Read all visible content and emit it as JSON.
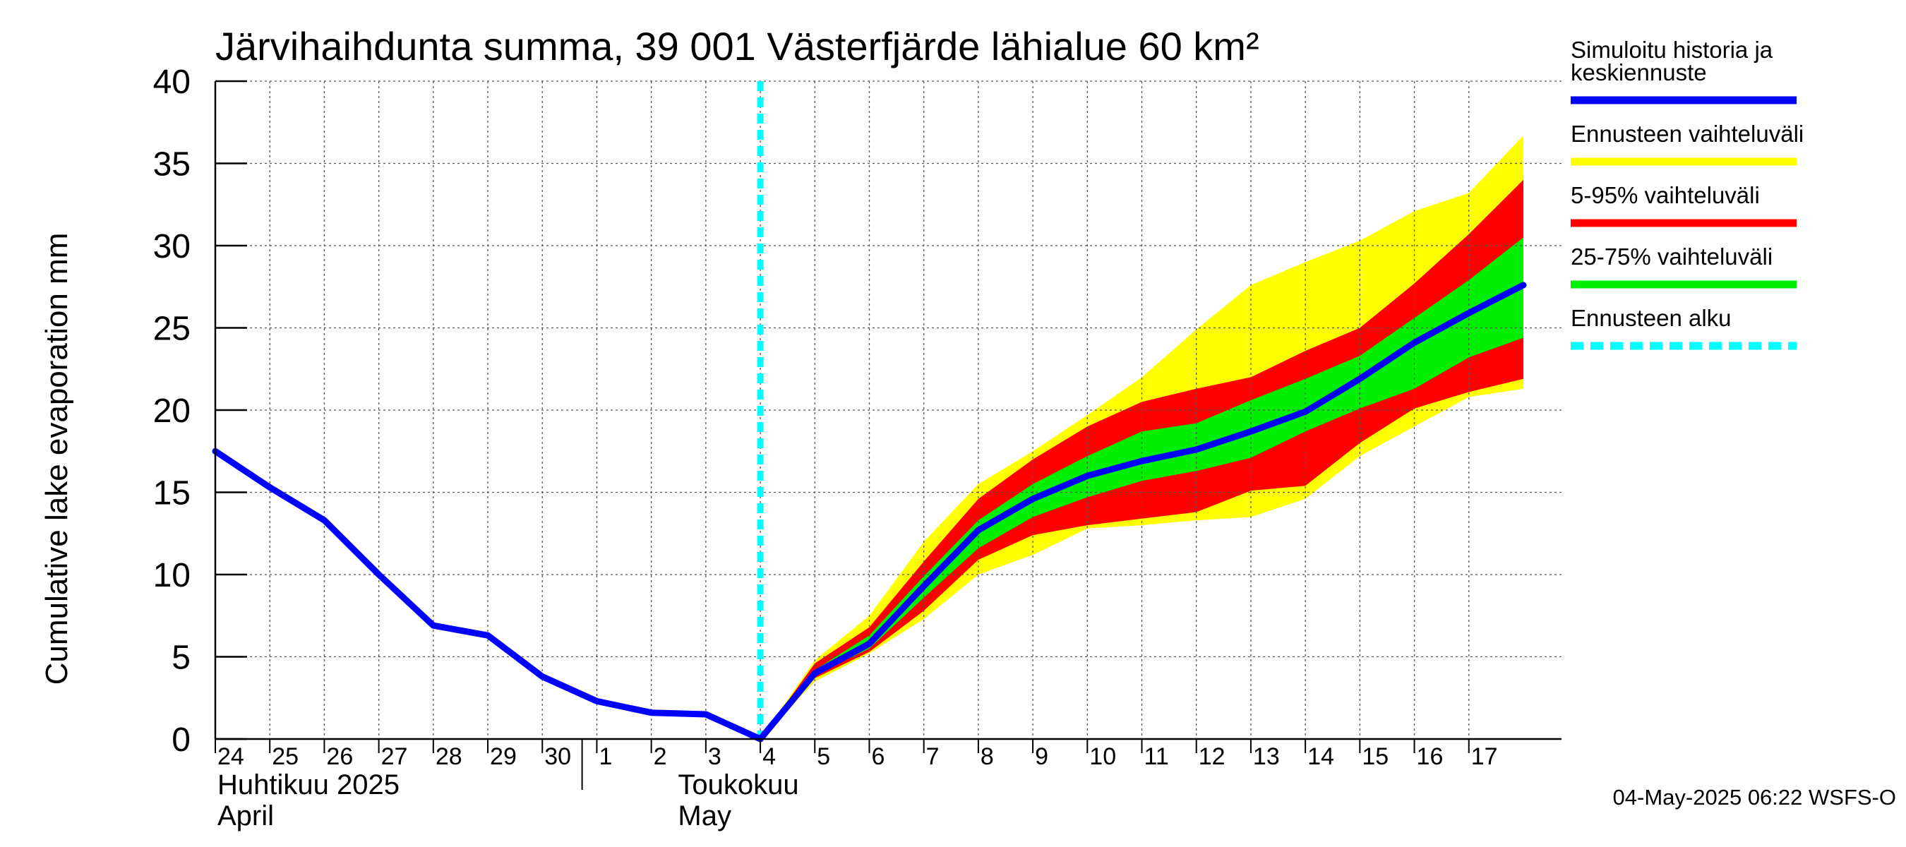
{
  "chart_data": {
    "type": "area",
    "title": "Järvihaihdunta summa, 39 001 Västerfjärde lähialue 60 km²",
    "ylabel": "Cumulative lake evaporation   mm",
    "ylim": [
      0,
      40
    ],
    "yticks": [
      0,
      5,
      10,
      15,
      20,
      25,
      30,
      35,
      40
    ],
    "grid": true,
    "day_labels": [
      "24",
      "25",
      "26",
      "27",
      "28",
      "29",
      "30",
      "1",
      "2",
      "3",
      "4",
      "5",
      "6",
      "7",
      "8",
      "9",
      "10",
      "11",
      "12",
      "13",
      "14",
      "15",
      "16",
      "17"
    ],
    "month_labels": [
      {
        "line1": "Huhtikuu  2025",
        "line2": "April"
      },
      {
        "line1": "Toukokuu",
        "line2": "May"
      }
    ],
    "forecast_start_day": 10,
    "history": {
      "name": "Simuloitu historia ja keskiennuste",
      "x": [
        0,
        1,
        2,
        3,
        4,
        5,
        6,
        7,
        8,
        9,
        10
      ],
      "y": [
        17.5,
        15.3,
        13.3,
        10.0,
        6.9,
        6.3,
        3.8,
        2.3,
        1.6,
        1.5,
        0.0
      ]
    },
    "forecast": {
      "x": [
        10,
        11,
        12,
        13,
        14,
        15,
        16,
        17,
        18,
        19,
        20,
        21,
        22,
        23,
        24
      ],
      "median": [
        0.0,
        4.0,
        5.8,
        9.3,
        12.7,
        14.6,
        16.0,
        16.9,
        17.6,
        18.7,
        19.9,
        21.9,
        24.1,
        25.9,
        27.6
      ],
      "p25": [
        0.0,
        3.9,
        5.5,
        8.6,
        11.6,
        13.5,
        14.7,
        15.7,
        16.3,
        17.1,
        18.7,
        20.1,
        21.3,
        23.2,
        24.4
      ],
      "p75": [
        0.0,
        4.2,
        6.3,
        9.9,
        13.3,
        15.5,
        17.2,
        18.7,
        19.2,
        20.6,
        21.9,
        23.3,
        25.6,
        27.9,
        30.5
      ],
      "p05": [
        0.0,
        3.7,
        5.3,
        7.8,
        10.9,
        12.4,
        13.0,
        13.4,
        13.8,
        15.1,
        15.4,
        18.0,
        20.1,
        21.1,
        21.9
      ],
      "p95": [
        0.0,
        4.6,
        6.8,
        10.8,
        14.6,
        17.0,
        19.0,
        20.5,
        21.3,
        22.0,
        23.6,
        25.0,
        27.7,
        30.7,
        34.0
      ],
      "min": [
        0.0,
        3.5,
        5.2,
        7.3,
        10.0,
        11.2,
        12.8,
        13.0,
        13.3,
        13.5,
        14.6,
        17.2,
        19.0,
        20.8,
        21.3
      ],
      "max": [
        0.0,
        4.8,
        7.5,
        12.0,
        15.5,
        17.5,
        19.7,
        22.0,
        24.9,
        27.6,
        29.0,
        30.3,
        32.1,
        33.2,
        36.7
      ]
    },
    "legend": [
      {
        "label": "Simuloitu historia ja",
        "label2": "keskiennuste",
        "color": "#0000ff",
        "style": "solid"
      },
      {
        "label": "Ennusteen vaihteluväli",
        "color": "#ffff00",
        "style": "solid"
      },
      {
        "label": "5-95% vaihteluväli",
        "color": "#ff0000",
        "style": "solid"
      },
      {
        "label": "25-75% vaihteluväli",
        "color": "#00ee00",
        "style": "solid"
      },
      {
        "label": "Ennusteen alku",
        "color": "#00ffff",
        "style": "dashed"
      }
    ],
    "colors": {
      "history": "#0000ff",
      "max_range": "#ffff00",
      "p05_95": "#ff0000",
      "p25_75": "#00ee00",
      "forecast_start": "#00ffff"
    }
  },
  "footer": {
    "timestamp": "04-May-2025 06:22 WSFS-O"
  }
}
